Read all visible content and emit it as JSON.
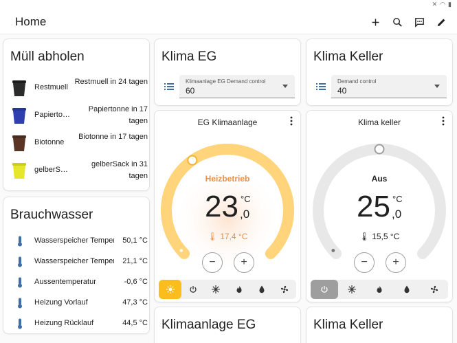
{
  "app": {
    "title": "Home",
    "actions": [
      {
        "icon": "plus-icon"
      },
      {
        "icon": "search-icon"
      },
      {
        "icon": "assist-icon"
      },
      {
        "icon": "pencil-icon"
      }
    ]
  },
  "muell": {
    "title": "Müll abholen",
    "items": [
      {
        "name": "Restmuell",
        "state": "Restmuell in 24 tagen",
        "color": "#2b2b2b"
      },
      {
        "name": "Papiertonne",
        "state": "Papiertonne in 17 tagen",
        "color": "#2f3fb0"
      },
      {
        "name": "Biotonne",
        "state": "Biotonne in 17 tagen",
        "color": "#5a3526"
      },
      {
        "name": "gelberSack",
        "state": "gelberSack in 31 tagen",
        "color": "#e6e62a"
      }
    ]
  },
  "brauchwasser": {
    "title": "Brauchwasser",
    "items": [
      {
        "name": "Wasserspeicher Temperatur oben",
        "state": "50,1 °C"
      },
      {
        "name": "Wasserspeicher Temperatur unten",
        "state": "21,1 °C"
      },
      {
        "name": "Aussentemperatur",
        "state": "-0,6 °C"
      },
      {
        "name": "Heizung Vorlauf",
        "state": "47,3 °C"
      },
      {
        "name": "Heizung Rücklauf",
        "state": "44,5 °C"
      }
    ]
  },
  "klima_eg_card": {
    "title": "Klima EG",
    "select_label": "Klimaanlage EG Demand control",
    "select_value": "60"
  },
  "klima_keller_card": {
    "title": "Klima Keller",
    "select_label": "Demand control",
    "select_value": "40"
  },
  "thermostat_eg": {
    "title": "EG Klimaanlage",
    "mode": "Heizbetrieb",
    "target_int": "23",
    "target_dec": ",0",
    "unit": "°C",
    "current": "17,4 °C",
    "setpoint_fraction": 0.37,
    "accent": "#e8904a",
    "arc_color": "#ffd47a"
  },
  "thermostat_keller": {
    "title": "Klima keller",
    "mode": "Aus",
    "target_int": "25",
    "target_dec": ",0",
    "unit": "°C",
    "current": "15,5 °C",
    "setpoint_fraction": 0.5,
    "arc_color": "#e8e8e8"
  },
  "bottom_cards": {
    "left_title": "Klimaanlage EG",
    "right_title": "Klima Keller"
  },
  "colors": {
    "heat_active": "#fbbd1d",
    "off_active": "#9e9e9e",
    "icon_blue": "#3f6ea5"
  }
}
